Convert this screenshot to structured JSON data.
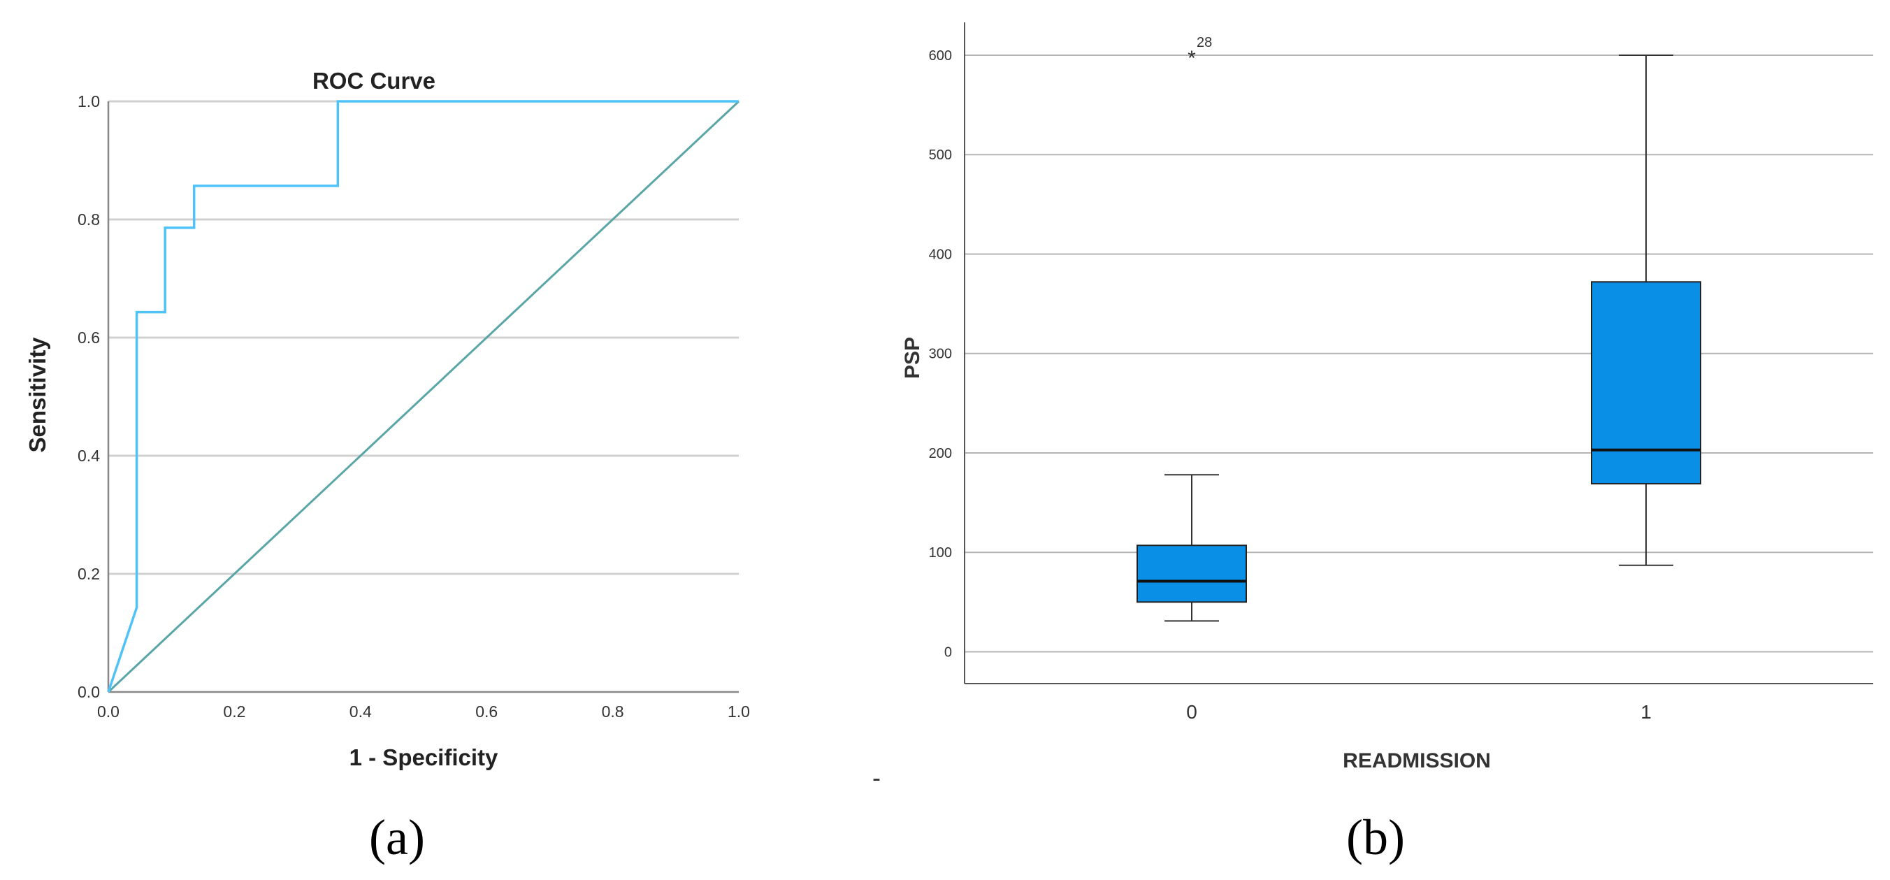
{
  "panel_labels": {
    "a": "(a)",
    "b": "(b)"
  },
  "separator": "-",
  "colors": {
    "roc_curve": "#4fc3f7",
    "reference_line": "#5aa6a6",
    "box_fill": "#0a8fe6",
    "grid": "#d0d0d0"
  },
  "chart_data": [
    {
      "type": "line",
      "title": "ROC Curve",
      "xlabel": "1 - Specificity",
      "ylabel": "Sensitivity",
      "xlim": [
        0.0,
        1.0
      ],
      "ylim": [
        0.0,
        1.0
      ],
      "x_ticks": [
        "0.0",
        "0.2",
        "0.4",
        "0.6",
        "0.8",
        "1.0"
      ],
      "y_ticks": [
        "0.0",
        "0.2",
        "0.4",
        "0.6",
        "0.8",
        "1.0"
      ],
      "grid": "horizontal",
      "series": [
        {
          "x": [
            0.0,
            0.045,
            0.045,
            0.09,
            0.09,
            0.136,
            0.136,
            0.364,
            0.364,
            1.0
          ],
          "y": [
            0.0,
            0.143,
            0.643,
            0.643,
            0.786,
            0.786,
            0.857,
            0.857,
            1.0,
            1.0
          ]
        },
        {
          "x": [
            0.0,
            1.0
          ],
          "y": [
            0.0,
            1.0
          ]
        }
      ]
    },
    {
      "type": "box",
      "xlabel": "READMISSION",
      "ylabel": "PSP",
      "ylim": [
        -32,
        633
      ],
      "y_ticks": [
        "0",
        "100",
        "200",
        "300",
        "400",
        "500",
        "600"
      ],
      "grid": "horizontal",
      "categories": [
        "0",
        "1"
      ],
      "boxes": [
        {
          "min": 31,
          "q1": 50,
          "median": 71,
          "q3": 107,
          "max": 178
        },
        {
          "min": 87,
          "q1": 169,
          "median": 203,
          "q3": 372,
          "max": 600
        }
      ],
      "outliers": [
        {
          "category": "0",
          "value": 600,
          "marker": "*",
          "label": "28"
        }
      ]
    }
  ]
}
